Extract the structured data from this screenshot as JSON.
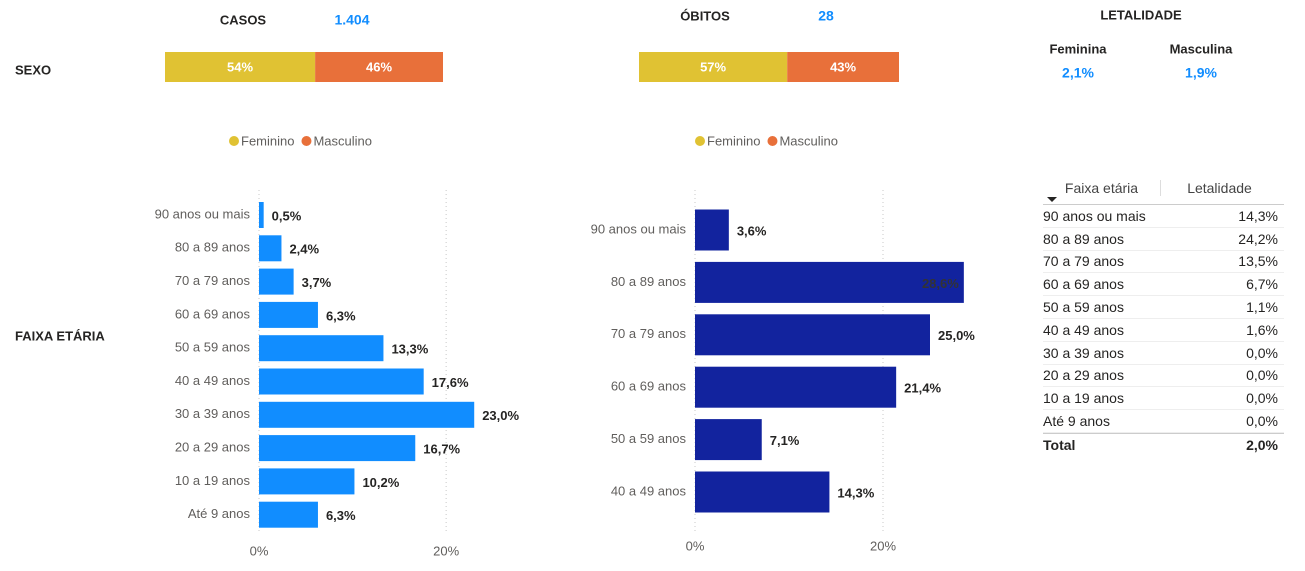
{
  "labels": {
    "sexo": "SEXO",
    "faixa": "FAIXA ETÁRIA"
  },
  "casos": {
    "label": "CASOS",
    "value": "1.404"
  },
  "obitos": {
    "label": "ÓBITOS",
    "value": "28"
  },
  "letalidade": {
    "title": "LETALIDADE",
    "items": [
      {
        "label": "Feminina",
        "value": "2,1%"
      },
      {
        "label": "Masculina",
        "value": "1,9%"
      }
    ]
  },
  "table": {
    "columns": [
      "Faixa etária",
      "Letalidade"
    ],
    "rows": [
      [
        "90 anos ou mais",
        "14,3%"
      ],
      [
        "80 a 89 anos",
        "24,2%"
      ],
      [
        "70 a 79 anos",
        "13,5%"
      ],
      [
        "60 a 69 anos",
        "6,7%"
      ],
      [
        "50 a 59 anos",
        "1,1%"
      ],
      [
        "40 a 49 anos",
        "1,6%"
      ],
      [
        "30 a 39 anos",
        "0,0%"
      ],
      [
        "20 a 29 anos",
        "0,0%"
      ],
      [
        "10 a 19 anos",
        "0,0%"
      ],
      [
        "Até 9 anos",
        "0,0%"
      ]
    ],
    "total": [
      "Total",
      "2,0%"
    ]
  },
  "chart_data": [
    {
      "type": "stacked_bar",
      "series": [
        {
          "name": "Feminino",
          "color": "#E0C233",
          "values": [
            54
          ],
          "value_labels": [
            "54%"
          ]
        },
        {
          "name": "Masculino",
          "color": "#E8703A",
          "values": [
            46
          ],
          "value_labels": [
            "46%"
          ]
        }
      ]
    },
    {
      "type": "stacked_bar",
      "series": [
        {
          "name": "Feminino",
          "color": "#E0C233",
          "values": [
            57
          ],
          "value_labels": [
            "57%"
          ]
        },
        {
          "name": "Masculino",
          "color": "#E8703A",
          "values": [
            43
          ],
          "value_labels": [
            "43%"
          ]
        }
      ]
    },
    {
      "type": "hbar",
      "color": "#118DFF",
      "categories": [
        "90 anos ou mais",
        "80 a 89 anos",
        "70 a 79 anos",
        "60 a 69 anos",
        "50 a 59 anos",
        "40 a 49 anos",
        "30 a 39 anos",
        "20 a 29 anos",
        "10 a 19 anos",
        "Até 9 anos"
      ],
      "values": [
        0.5,
        2.4,
        3.7,
        6.3,
        13.3,
        17.6,
        23.0,
        16.7,
        10.2,
        6.3
      ],
      "value_labels": [
        "0,5%",
        "2,4%",
        "3,7%",
        "6,3%",
        "13,3%",
        "17,6%",
        "23,0%",
        "16,7%",
        "10,2%",
        "6,3%"
      ],
      "xlim": [
        0,
        28
      ],
      "xticks": [
        {
          "value": 0,
          "label": "0%"
        },
        {
          "value": 20,
          "label": "20%"
        }
      ],
      "grid": true
    },
    {
      "type": "hbar",
      "color": "#12239E",
      "categories": [
        "90 anos ou mais",
        "80 a 89 anos",
        "70 a 79 anos",
        "60 a 69 anos",
        "50 a 59 anos",
        "40 a 49 anos"
      ],
      "values": [
        3.6,
        28.6,
        25.0,
        21.4,
        7.1,
        14.3
      ],
      "value_labels": [
        "3,6%",
        "28,6%",
        "25,0%",
        "21,4%",
        "7,1%",
        "14,3%"
      ],
      "xlim": [
        0,
        30
      ],
      "xticks": [
        {
          "value": 0,
          "label": "0%"
        },
        {
          "value": 20,
          "label": "20%"
        }
      ],
      "grid": true
    }
  ]
}
